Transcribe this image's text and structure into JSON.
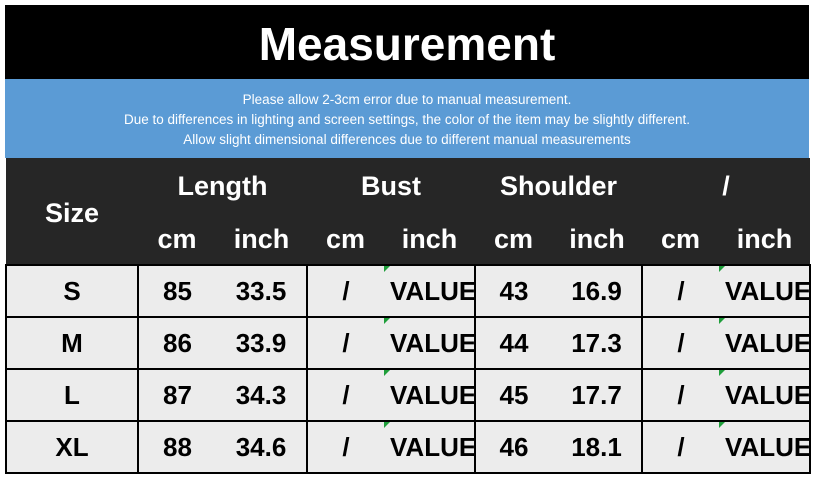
{
  "title": "Measurement",
  "notes": [
    "Please allow 2-3cm error due to manual measurement.",
    "Due to differences in lighting and screen settings, the color of the item may be slightly different.",
    "Allow slight dimensional differences due to different manual measurements"
  ],
  "header": {
    "size": "Size",
    "groups": [
      "Length",
      "Bust",
      "Shoulder",
      "/"
    ],
    "cm": "cm",
    "inch": "inch"
  },
  "rows": [
    {
      "size": "S",
      "length_cm": "85",
      "length_in": "33.5",
      "bust_cm": "/",
      "bust_in": "VALUE",
      "shoulder_cm": "43",
      "shoulder_in": "16.9",
      "x_cm": "/",
      "x_in": "VALUE"
    },
    {
      "size": "M",
      "length_cm": "86",
      "length_in": "33.9",
      "bust_cm": "/",
      "bust_in": "VALUE",
      "shoulder_cm": "44",
      "shoulder_in": "17.3",
      "x_cm": "/",
      "x_in": "VALUE"
    },
    {
      "size": "L",
      "length_cm": "87",
      "length_in": "34.3",
      "bust_cm": "/",
      "bust_in": "VALUE",
      "shoulder_cm": "45",
      "shoulder_in": "17.7",
      "x_cm": "/",
      "x_in": "VALUE"
    },
    {
      "size": "XL",
      "length_cm": "88",
      "length_in": "34.6",
      "bust_cm": "/",
      "bust_in": "VALUE",
      "shoulder_cm": "46",
      "shoulder_in": "18.1",
      "x_cm": "/",
      "x_in": "VALUE"
    }
  ]
}
